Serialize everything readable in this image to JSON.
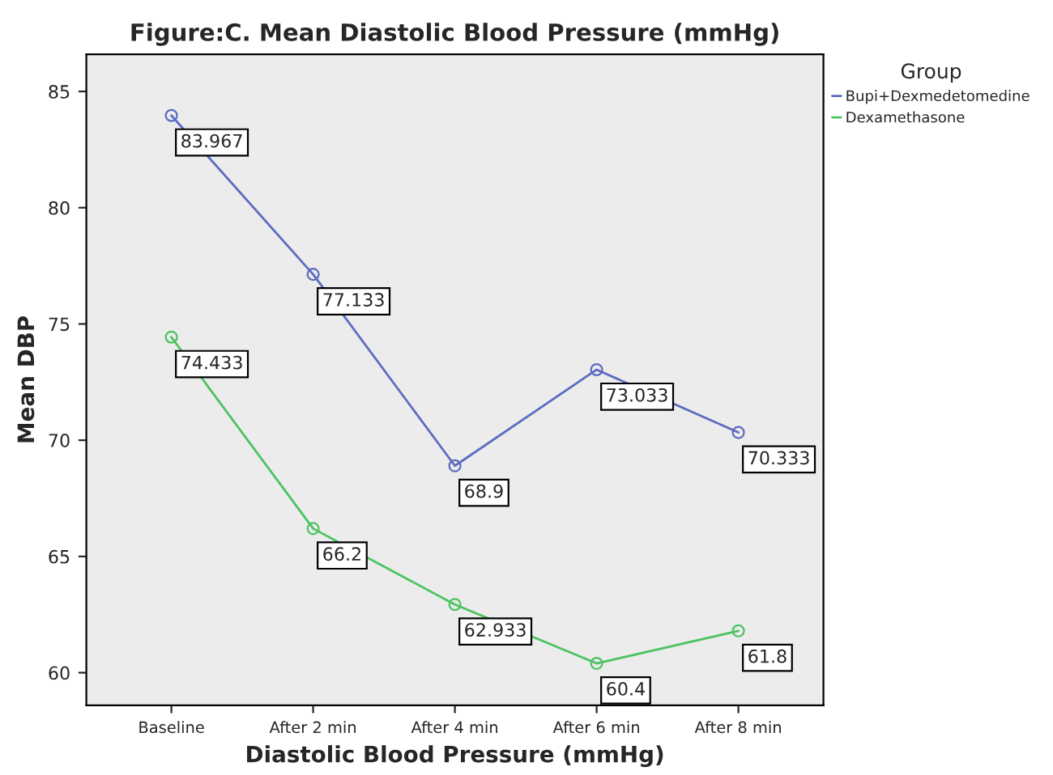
{
  "chart_data": {
    "type": "line",
    "title": "Figure:C. Mean Diastolic Blood Pressure (mmHg)",
    "xlabel": "Diastolic Blood Pressure (mmHg)",
    "ylabel": "Mean DBP",
    "legend_title": "Group",
    "categories": [
      "Baseline",
      "After 2 min",
      "After 4 min",
      "After 6 min",
      "After 8 min"
    ],
    "series": [
      {
        "name": "Bupi+Dexmedetomedine",
        "color": "#5c6bc0",
        "values": [
          83.967,
          77.133,
          68.9,
          73.033,
          70.333
        ]
      },
      {
        "name": "Dexamethasone",
        "color": "#4cc361",
        "values": [
          74.433,
          66.2,
          62.933,
          60.4,
          61.8
        ]
      }
    ],
    "ylim": [
      58.6,
      86.6
    ],
    "yticks": [
      60,
      65,
      70,
      75,
      80,
      85
    ],
    "grid": false,
    "legend": "top right",
    "marker": "circle",
    "line_style": "solid",
    "data_labels": true
  }
}
